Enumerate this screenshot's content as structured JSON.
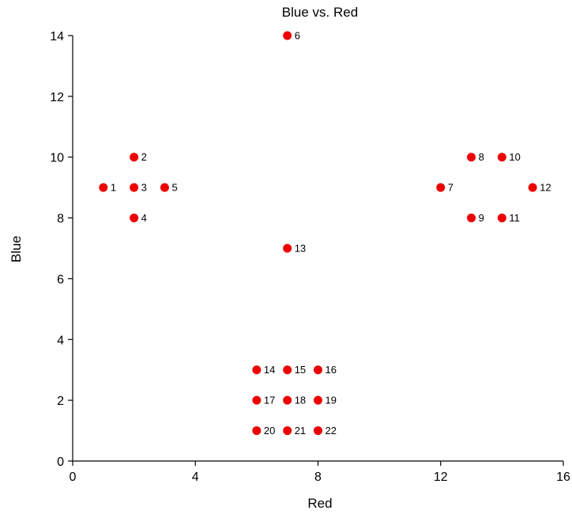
{
  "chart_data": {
    "type": "scatter",
    "title": "Blue vs. Red",
    "xlabel": "Red",
    "ylabel": "Blue",
    "xlim": [
      0,
      16
    ],
    "ylim": [
      0,
      14
    ],
    "xticks": [
      0,
      4,
      8,
      12,
      16
    ],
    "yticks": [
      0,
      2,
      4,
      6,
      8,
      10,
      12,
      14
    ],
    "grid": false,
    "marker_color": "#ee0000",
    "points": [
      {
        "label": "1",
        "x": 1,
        "y": 9
      },
      {
        "label": "2",
        "x": 2,
        "y": 10
      },
      {
        "label": "3",
        "x": 2,
        "y": 9
      },
      {
        "label": "4",
        "x": 2,
        "y": 8
      },
      {
        "label": "5",
        "x": 3,
        "y": 9
      },
      {
        "label": "6",
        "x": 7,
        "y": 14
      },
      {
        "label": "7",
        "x": 12,
        "y": 9
      },
      {
        "label": "8",
        "x": 13,
        "y": 10
      },
      {
        "label": "9",
        "x": 13,
        "y": 8
      },
      {
        "label": "10",
        "x": 14,
        "y": 10
      },
      {
        "label": "11",
        "x": 14,
        "y": 8
      },
      {
        "label": "12",
        "x": 15,
        "y": 9
      },
      {
        "label": "13",
        "x": 7,
        "y": 7
      },
      {
        "label": "14",
        "x": 6,
        "y": 3
      },
      {
        "label": "15",
        "x": 7,
        "y": 3
      },
      {
        "label": "16",
        "x": 8,
        "y": 3
      },
      {
        "label": "17",
        "x": 6,
        "y": 2
      },
      {
        "label": "18",
        "x": 7,
        "y": 2
      },
      {
        "label": "19",
        "x": 8,
        "y": 2
      },
      {
        "label": "20",
        "x": 6,
        "y": 1
      },
      {
        "label": "21",
        "x": 7,
        "y": 1
      },
      {
        "label": "22",
        "x": 8,
        "y": 1
      }
    ]
  }
}
